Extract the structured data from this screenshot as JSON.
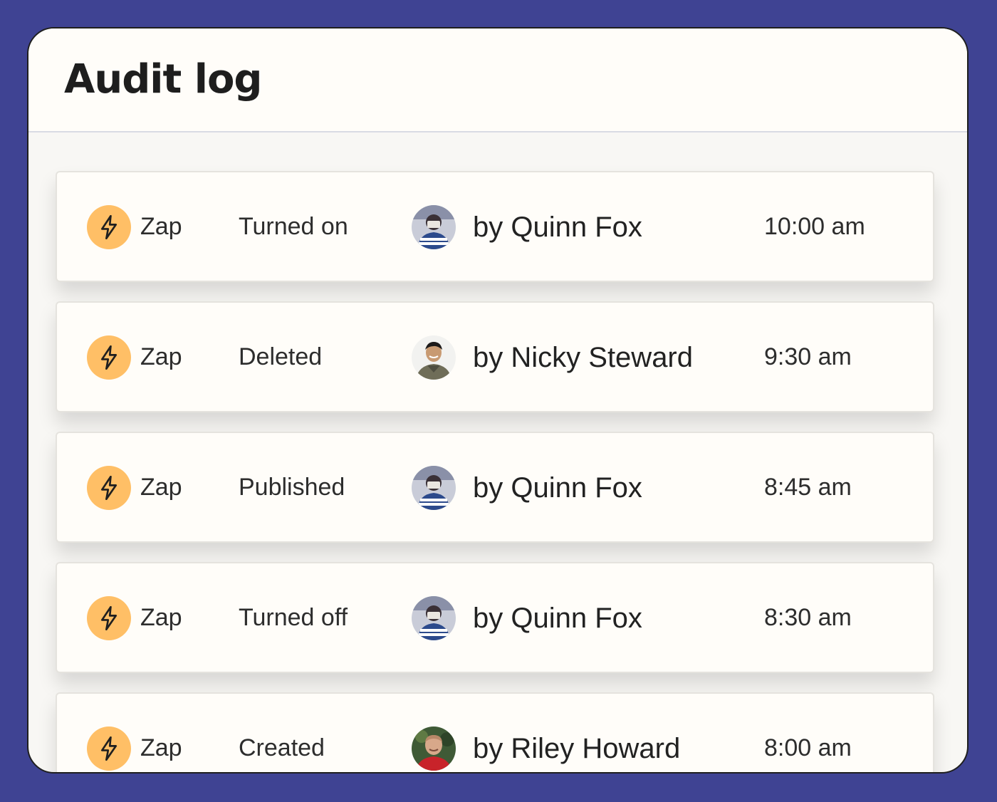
{
  "header": {
    "title": "Audit log"
  },
  "colors": {
    "background": "#3f4393",
    "zap_icon": "#ffbf66"
  },
  "entries": [
    {
      "item_type": "Zap",
      "action": "Turned on",
      "by_prefix": "by",
      "actor": "Quinn Fox",
      "time": "10:00 am",
      "icon": "lightning-bolt-icon",
      "avatar": "quinn-fox-avatar"
    },
    {
      "item_type": "Zap",
      "action": "Deleted",
      "by_prefix": "by",
      "actor": "Nicky Steward",
      "time": "9:30 am",
      "icon": "lightning-bolt-icon",
      "avatar": "nicky-steward-avatar"
    },
    {
      "item_type": "Zap",
      "action": "Published",
      "by_prefix": "by",
      "actor": "Quinn Fox",
      "time": "8:45 am",
      "icon": "lightning-bolt-icon",
      "avatar": "quinn-fox-avatar"
    },
    {
      "item_type": "Zap",
      "action": "Turned off",
      "by_prefix": "by",
      "actor": "Quinn Fox",
      "time": "8:30 am",
      "icon": "lightning-bolt-icon",
      "avatar": "quinn-fox-avatar"
    },
    {
      "item_type": "Zap",
      "action": "Created",
      "by_prefix": "by",
      "actor": "Riley Howard",
      "time": "8:00 am",
      "icon": "lightning-bolt-icon",
      "avatar": "riley-howard-avatar"
    }
  ]
}
